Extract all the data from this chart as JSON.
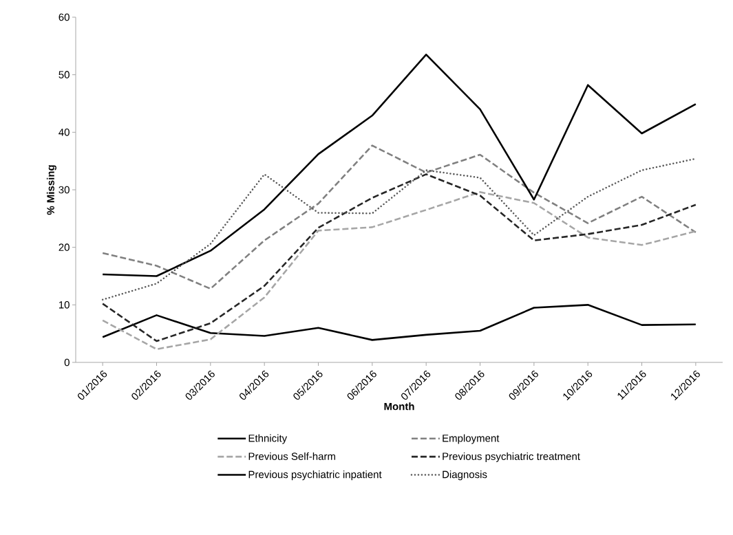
{
  "chart_data": {
    "type": "line",
    "xlabel": "Month",
    "ylabel": "% Missing",
    "categories": [
      "01/2016",
      "02/2016",
      "03/2016",
      "04/2016",
      "05/2016",
      "06/2016",
      "07/2016",
      "08/2016",
      "09/2016",
      "10/2016",
      "11/2016",
      "12/2016"
    ],
    "ylim": [
      0,
      60
    ],
    "yticks": [
      0,
      10,
      20,
      30,
      40,
      50,
      60
    ],
    "grid": false,
    "legend": "bottom",
    "series": [
      {
        "name": "Ethnicity",
        "color": "#000000",
        "line_style": "solid",
        "values": [
          4.4,
          8.2,
          5.1,
          4.6,
          6.0,
          3.9,
          4.8,
          5.5,
          9.5,
          10.0,
          6.5,
          6.6
        ]
      },
      {
        "name": "Employment",
        "color": "#808080",
        "line_style": "dashed",
        "values": [
          19.0,
          16.8,
          12.8,
          21.2,
          27.6,
          37.7,
          33.0,
          36.1,
          29.5,
          24.2,
          28.8,
          22.6
        ]
      },
      {
        "name": "Previous Self-harm",
        "color": "#a6a6a6",
        "line_style": "dashed",
        "values": [
          7.3,
          2.3,
          4.0,
          11.3,
          22.9,
          23.5,
          26.5,
          29.6,
          27.7,
          21.7,
          20.4,
          22.8
        ]
      },
      {
        "name": "Previous psychiatric treatment",
        "color": "#262626",
        "line_style": "dashed",
        "values": [
          10.2,
          3.7,
          6.8,
          13.3,
          23.4,
          28.6,
          32.7,
          29.0,
          21.2,
          22.3,
          23.9,
          27.4
        ]
      },
      {
        "name": "Previous psychiatric inpatient",
        "color": "#000000",
        "line_style": "solid",
        "values": [
          15.3,
          15.0,
          19.4,
          26.6,
          36.2,
          42.9,
          53.5,
          44.0,
          28.3,
          48.2,
          39.8,
          44.9
        ]
      },
      {
        "name": "Diagnosis",
        "color": "#595959",
        "line_style": "dotted",
        "values": [
          10.9,
          13.7,
          20.6,
          32.7,
          26.0,
          25.9,
          33.4,
          32.1,
          22.1,
          28.8,
          33.4,
          35.4
        ]
      }
    ]
  }
}
